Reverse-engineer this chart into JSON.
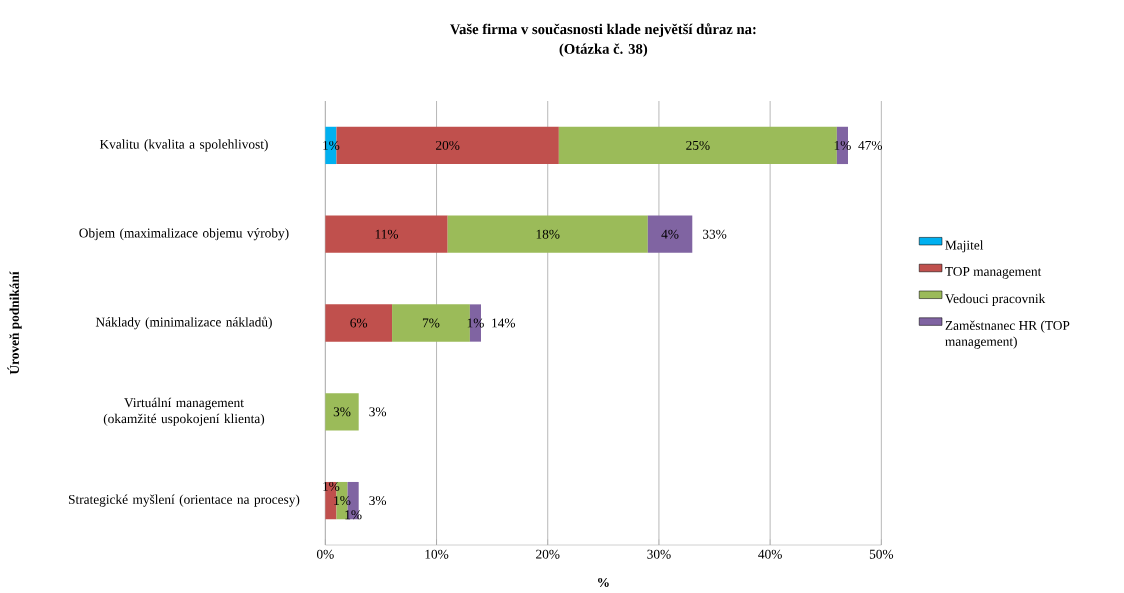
{
  "chart_data": {
    "type": "bar",
    "orientation": "horizontal",
    "stacked": true,
    "title": "Vaše firma  v současnosti klade největší důraz  na:",
    "subtitle": "(Otázka č. 38)",
    "xlabel": "%",
    "ylabel": "Úroveň podnikání",
    "categories": [
      "Kvalitu (kvalita a spolehlivost)",
      "Objem (maximalizace objemu výroby)",
      "Náklady (minimalizace nákladů)",
      "Virtuální management (okamžité uspokojení klienta)",
      "Strategické myšlení (orientace na procesy)"
    ],
    "series": [
      {
        "name": "Majitel",
        "color": "#00b0f0",
        "values": [
          1,
          null,
          null,
          null,
          null
        ],
        "value_labels": [
          "1%",
          null,
          null,
          null,
          null
        ]
      },
      {
        "name": "TOP management",
        "color": "#c0504d",
        "values": [
          20,
          11,
          6,
          null,
          1
        ],
        "value_labels": [
          "20%",
          "11%",
          "6%",
          null,
          "1%"
        ]
      },
      {
        "name": "Vedouci pracovnik",
        "color": "#9bbb59",
        "values": [
          25,
          18,
          7,
          3,
          1
        ],
        "value_labels": [
          "25%",
          "18%",
          "7%",
          "3%",
          "1%"
        ]
      },
      {
        "name": "Zaměstnanec HR (TOP management)",
        "color": "#8064a2",
        "values": [
          1,
          4,
          1,
          null,
          1
        ],
        "value_labels": [
          "1%",
          "4%",
          "1%",
          null,
          "1%"
        ]
      }
    ],
    "totals": [
      "47%",
      "33%",
      "14%",
      "3%",
      "3%"
    ],
    "xlim": [
      0,
      50
    ],
    "xticks": [
      {
        "value": 0,
        "label": "0%"
      },
      {
        "value": 10,
        "label": "10%"
      },
      {
        "value": 20,
        "label": "20%"
      },
      {
        "value": 30,
        "label": "30%"
      },
      {
        "value": 40,
        "label": "40%"
      },
      {
        "value": 50,
        "label": "50%"
      }
    ],
    "grid": "x",
    "legend": "right"
  }
}
